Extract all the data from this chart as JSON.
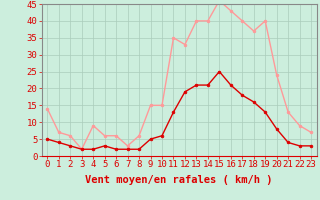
{
  "hours": [
    0,
    1,
    2,
    3,
    4,
    5,
    6,
    7,
    8,
    9,
    10,
    11,
    12,
    13,
    14,
    15,
    16,
    17,
    18,
    19,
    20,
    21,
    22,
    23
  ],
  "wind_avg": [
    5,
    4,
    3,
    2,
    2,
    3,
    2,
    2,
    2,
    5,
    6,
    13,
    19,
    21,
    21,
    25,
    21,
    18,
    16,
    13,
    8,
    4,
    3,
    3
  ],
  "wind_gust": [
    14,
    7,
    6,
    2,
    9,
    6,
    6,
    3,
    6,
    15,
    15,
    35,
    33,
    40,
    40,
    46,
    43,
    40,
    37,
    40,
    24,
    13,
    9,
    7
  ],
  "avg_color": "#dd0000",
  "gust_color": "#ff9999",
  "bg_color": "#cceedd",
  "grid_color": "#aaccbb",
  "xlabel": "Vent moyen/en rafales ( km/h )",
  "ylim": [
    0,
    45
  ],
  "yticks": [
    0,
    5,
    10,
    15,
    20,
    25,
    30,
    35,
    40,
    45
  ],
  "tick_color": "#dd0000",
  "label_fontsize": 6.5,
  "xlabel_fontsize": 7.5
}
